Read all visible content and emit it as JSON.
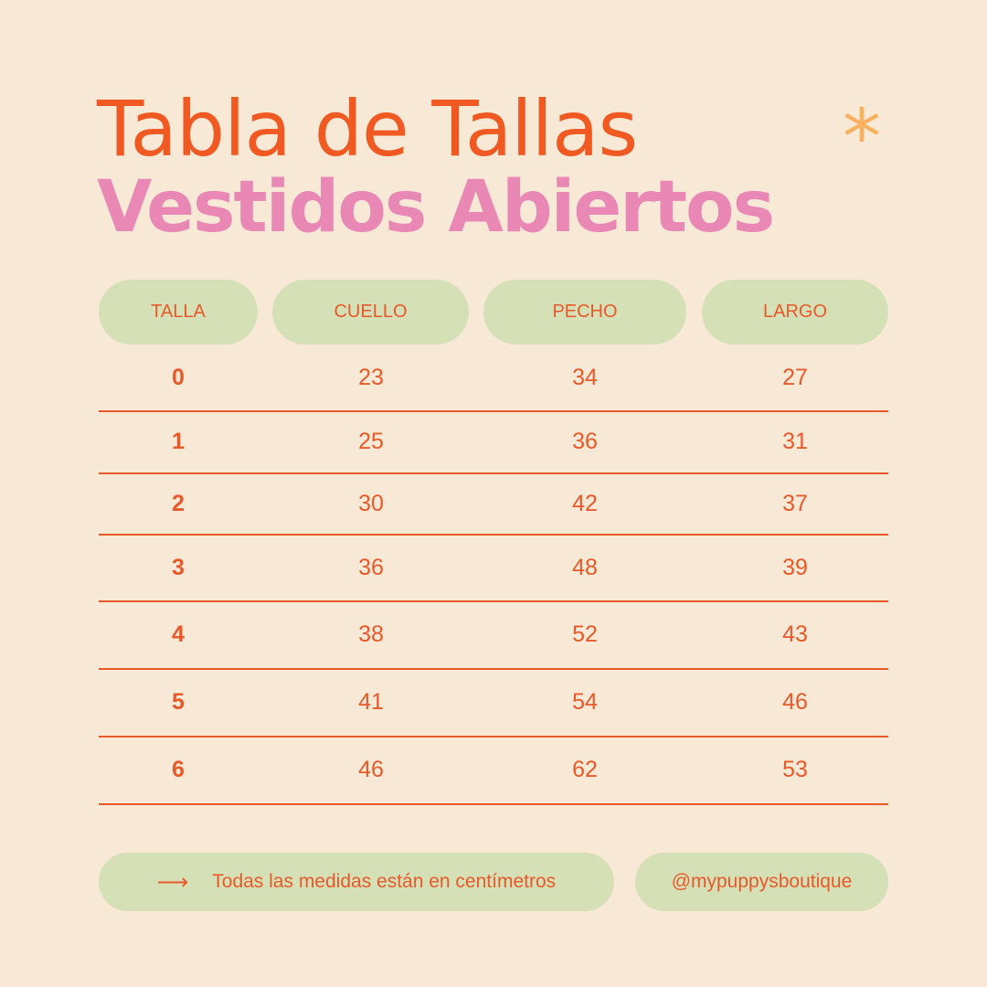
{
  "title": "Tabla de Tallas",
  "subtitle": "Vestidos Abiertos",
  "decoration_icon": "asterisk-icon",
  "colors": {
    "background": "#f8e9d7",
    "title": "#f05a22",
    "subtitle": "#ea88b5",
    "pill": "#d5e0b6",
    "accent": "#f9b15f"
  },
  "table": {
    "headers": [
      "TALLA",
      "CUELLO",
      "PECHO",
      "LARGO"
    ],
    "rows": [
      [
        "0",
        "23",
        "34",
        "27"
      ],
      [
        "1",
        "25",
        "36",
        "31"
      ],
      [
        "2",
        "30",
        "42",
        "37"
      ],
      [
        "3",
        "36",
        "48",
        "39"
      ],
      [
        "4",
        "38",
        "52",
        "43"
      ],
      [
        "5",
        "41",
        "54",
        "46"
      ],
      [
        "6",
        "46",
        "62",
        "53"
      ]
    ]
  },
  "footer": {
    "note_icon": "arrow-right-icon",
    "note": "Todas las medidas están en centímetros",
    "handle": "@mypuppysboutique"
  }
}
